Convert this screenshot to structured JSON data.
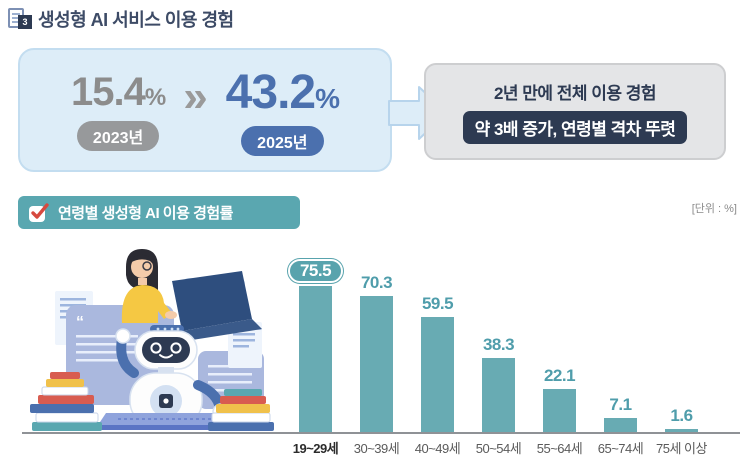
{
  "header": {
    "index_badge": "3",
    "title": "생성형 AI 서비스 이용 경험"
  },
  "comparison": {
    "before": {
      "value": "15.4",
      "unit": "%",
      "year_label": "2023년"
    },
    "after": {
      "value": "43.2",
      "unit": "%",
      "year_label": "2025년"
    },
    "arrow_glyph": "»"
  },
  "callout": {
    "line1": "2년 만에 전체 이용 경험",
    "line2": "약 3배 증가, 연령별 격차 뚜렷"
  },
  "section": {
    "title": "연령별 생성형 AI 이용 경험률",
    "unit_note": "[단위 : %]"
  },
  "chart_data": {
    "type": "bar",
    "title": "연령별 생성형 AI 이용 경험률",
    "categories": [
      "19~29세",
      "30~39세",
      "40~49세",
      "50~54세",
      "55~64세",
      "65~74세",
      "75세 이상"
    ],
    "values": [
      75.5,
      70.3,
      59.5,
      38.3,
      22.1,
      7.1,
      1.6
    ],
    "unit": "%",
    "ylim": [
      0,
      80
    ],
    "grid": false,
    "legend": false,
    "highlight_first": true,
    "bar_color": "#68abb3",
    "value_label_color": "#4f9dab"
  },
  "colors": {
    "title_navy": "#3d4b66",
    "dark_navy": "#2d3a52",
    "accent_blue": "#4b70ae",
    "muted_gray": "#8c8c8c",
    "light_blue_bg": "#ddedf8",
    "gray_bg": "#e4e5e7",
    "teal": "#5aa7b0"
  },
  "illustration": {
    "alt": "woman typing on laptop with AI robot and stacks of books"
  }
}
